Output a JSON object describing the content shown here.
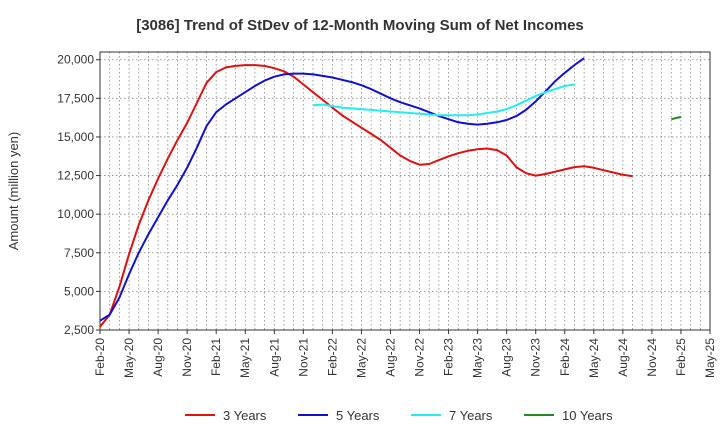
{
  "chart_data": {
    "type": "line",
    "title": "[3086]  Trend of StDev of 12-Month Moving Sum of Net Incomes",
    "ylabel": "Amount (million yen)",
    "xlabel": "",
    "ylim": [
      2500,
      20500
    ],
    "yticks": [
      2500,
      5000,
      7500,
      10000,
      12500,
      15000,
      17500,
      20000
    ],
    "ytick_labels": [
      "2,500",
      "5,000",
      "7,500",
      "10,000",
      "12,500",
      "15,000",
      "17,500",
      "20,000"
    ],
    "xlim": [
      "2020-02",
      "2025-05"
    ],
    "xticks": [
      "2020-02",
      "2020-05",
      "2020-08",
      "2020-11",
      "2021-02",
      "2021-05",
      "2021-08",
      "2021-11",
      "2022-02",
      "2022-05",
      "2022-08",
      "2022-11",
      "2023-02",
      "2023-05",
      "2023-08",
      "2023-11",
      "2024-02",
      "2024-05",
      "2024-08",
      "2024-11",
      "2025-02",
      "2025-05"
    ],
    "xtick_labels": [
      "Feb-20",
      "May-20",
      "Aug-20",
      "Nov-20",
      "Feb-21",
      "May-21",
      "Aug-21",
      "Nov-21",
      "Feb-22",
      "May-22",
      "Aug-22",
      "Nov-22",
      "Feb-23",
      "May-23",
      "Aug-23",
      "Nov-23",
      "Feb-24",
      "May-24",
      "Aug-24",
      "Nov-24",
      "Feb-25",
      "May-25"
    ],
    "grid": true,
    "legend_position": "bottom",
    "series": [
      {
        "name": "3 Years",
        "color": "#dd1111",
        "points": [
          [
            "2020-02",
            2700
          ],
          [
            "2020-03",
            3500
          ],
          [
            "2020-04",
            5300
          ],
          [
            "2020-05",
            7400
          ],
          [
            "2020-06",
            9300
          ],
          [
            "2020-07",
            10900
          ],
          [
            "2020-08",
            12300
          ],
          [
            "2020-09",
            13600
          ],
          [
            "2020-10",
            14800
          ],
          [
            "2020-11",
            15900
          ],
          [
            "2020-12",
            17200
          ],
          [
            "2021-01",
            18500
          ],
          [
            "2021-02",
            19200
          ],
          [
            "2021-03",
            19500
          ],
          [
            "2021-04",
            19600
          ],
          [
            "2021-05",
            19650
          ],
          [
            "2021-06",
            19650
          ],
          [
            "2021-07",
            19600
          ],
          [
            "2021-08",
            19450
          ],
          [
            "2021-09",
            19250
          ],
          [
            "2021-10",
            18900
          ],
          [
            "2021-11",
            18400
          ],
          [
            "2021-12",
            17900
          ],
          [
            "2022-01",
            17400
          ],
          [
            "2022-02",
            16900
          ],
          [
            "2022-03",
            16400
          ],
          [
            "2022-04",
            16000
          ],
          [
            "2022-05",
            15600
          ],
          [
            "2022-06",
            15200
          ],
          [
            "2022-07",
            14800
          ],
          [
            "2022-08",
            14300
          ],
          [
            "2022-09",
            13800
          ],
          [
            "2022-10",
            13450
          ],
          [
            "2022-11",
            13200
          ],
          [
            "2022-12",
            13250
          ],
          [
            "2023-01",
            13500
          ],
          [
            "2023-02",
            13750
          ],
          [
            "2023-03",
            13950
          ],
          [
            "2023-04",
            14100
          ],
          [
            "2023-05",
            14200
          ],
          [
            "2023-06",
            14250
          ],
          [
            "2023-07",
            14150
          ],
          [
            "2023-08",
            13800
          ],
          [
            "2023-09",
            13050
          ],
          [
            "2023-10",
            12650
          ],
          [
            "2023-11",
            12500
          ],
          [
            "2023-12",
            12600
          ],
          [
            "2024-01",
            12750
          ],
          [
            "2024-02",
            12900
          ],
          [
            "2024-03",
            13050
          ],
          [
            "2024-04",
            13100
          ],
          [
            "2024-05",
            13000
          ],
          [
            "2024-06",
            12850
          ],
          [
            "2024-07",
            12700
          ],
          [
            "2024-08",
            12550
          ],
          [
            "2024-09",
            12450
          ]
        ]
      },
      {
        "name": "5 Years",
        "color": "#1111cc",
        "points": [
          [
            "2020-02",
            3100
          ],
          [
            "2020-03",
            3500
          ],
          [
            "2020-04",
            4600
          ],
          [
            "2020-05",
            6100
          ],
          [
            "2020-06",
            7500
          ],
          [
            "2020-07",
            8700
          ],
          [
            "2020-08",
            9800
          ],
          [
            "2020-09",
            10900
          ],
          [
            "2020-10",
            11900
          ],
          [
            "2020-11",
            13000
          ],
          [
            "2020-12",
            14300
          ],
          [
            "2021-01",
            15700
          ],
          [
            "2021-02",
            16600
          ],
          [
            "2021-03",
            17100
          ],
          [
            "2021-04",
            17500
          ],
          [
            "2021-05",
            17900
          ],
          [
            "2021-06",
            18300
          ],
          [
            "2021-07",
            18650
          ],
          [
            "2021-08",
            18900
          ],
          [
            "2021-09",
            19050
          ],
          [
            "2021-10",
            19100
          ],
          [
            "2021-11",
            19100
          ],
          [
            "2021-12",
            19050
          ],
          [
            "2022-01",
            18950
          ],
          [
            "2022-02",
            18850
          ],
          [
            "2022-03",
            18700
          ],
          [
            "2022-04",
            18550
          ],
          [
            "2022-05",
            18350
          ],
          [
            "2022-06",
            18100
          ],
          [
            "2022-07",
            17800
          ],
          [
            "2022-08",
            17500
          ],
          [
            "2022-09",
            17250
          ],
          [
            "2022-10",
            17050
          ],
          [
            "2022-11",
            16850
          ],
          [
            "2022-12",
            16600
          ],
          [
            "2023-01",
            16350
          ],
          [
            "2023-02",
            16150
          ],
          [
            "2023-03",
            15950
          ],
          [
            "2023-04",
            15850
          ],
          [
            "2023-05",
            15800
          ],
          [
            "2023-06",
            15850
          ],
          [
            "2023-07",
            15950
          ],
          [
            "2023-08",
            16100
          ],
          [
            "2023-09",
            16350
          ],
          [
            "2023-10",
            16750
          ],
          [
            "2023-11",
            17300
          ],
          [
            "2023-12",
            17950
          ],
          [
            "2024-01",
            18600
          ],
          [
            "2024-02",
            19150
          ],
          [
            "2024-03",
            19650
          ],
          [
            "2024-04",
            20100
          ]
        ]
      },
      {
        "name": "7 Years",
        "color": "#22eeee",
        "points": [
          [
            "2021-12",
            17050
          ],
          [
            "2022-01",
            17100
          ],
          [
            "2022-02",
            17000
          ],
          [
            "2022-03",
            16900
          ],
          [
            "2022-04",
            16850
          ],
          [
            "2022-05",
            16800
          ],
          [
            "2022-06",
            16750
          ],
          [
            "2022-07",
            16700
          ],
          [
            "2022-08",
            16650
          ],
          [
            "2022-09",
            16600
          ],
          [
            "2022-10",
            16550
          ],
          [
            "2022-11",
            16500
          ],
          [
            "2022-12",
            16450
          ],
          [
            "2023-01",
            16400
          ],
          [
            "2023-02",
            16400
          ],
          [
            "2023-03",
            16400
          ],
          [
            "2023-04",
            16400
          ],
          [
            "2023-05",
            16450
          ],
          [
            "2023-06",
            16550
          ],
          [
            "2023-07",
            16650
          ],
          [
            "2023-08",
            16800
          ],
          [
            "2023-09",
            17050
          ],
          [
            "2023-10",
            17350
          ],
          [
            "2023-11",
            17650
          ],
          [
            "2023-12",
            17900
          ],
          [
            "2024-01",
            18100
          ],
          [
            "2024-02",
            18300
          ],
          [
            "2024-03",
            18400
          ]
        ]
      },
      {
        "name": "10 Years",
        "color": "#228822",
        "points": [
          [
            "2025-01",
            16150
          ],
          [
            "2025-02",
            16300
          ]
        ]
      }
    ]
  }
}
